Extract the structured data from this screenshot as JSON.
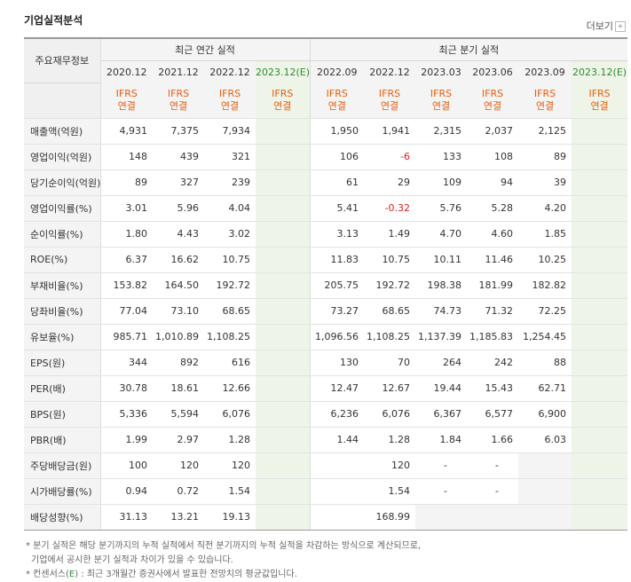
{
  "header": {
    "title": "기업실적분석",
    "more": "더보기",
    "more_icon": "plus-box-icon"
  },
  "table": {
    "label_header": "주요재무정보",
    "group_annual": "최근 연간 실적",
    "group_quarter": "최근 분기 실적",
    "annual_periods": [
      "2020.12",
      "2021.12",
      "2022.12",
      "2023.12(E)"
    ],
    "quarter_periods": [
      "2022.09",
      "2022.12",
      "2023.03",
      "2023.06",
      "2023.09",
      "2023.12(E)"
    ],
    "ifrs_line1": "IFRS",
    "ifrs_line2": "연결",
    "rows": [
      {
        "label": "매출액(억원)",
        "v": [
          "4,931",
          "7,375",
          "7,934",
          "",
          "1,950",
          "1,941",
          "2,315",
          "2,037",
          "2,125",
          ""
        ]
      },
      {
        "label": "영업이익(억원)",
        "v": [
          "148",
          "439",
          "321",
          "",
          "106",
          "-6",
          "133",
          "108",
          "89",
          ""
        ]
      },
      {
        "label": "당기순이익(억원)",
        "v": [
          "89",
          "327",
          "239",
          "",
          "61",
          "29",
          "109",
          "94",
          "39",
          ""
        ]
      },
      {
        "label": "영업이익률(%)",
        "v": [
          "3.01",
          "5.96",
          "4.04",
          "",
          "5.41",
          "-0.32",
          "5.76",
          "5.28",
          "4.20",
          ""
        ]
      },
      {
        "label": "순이익률(%)",
        "v": [
          "1.80",
          "4.43",
          "3.02",
          "",
          "3.13",
          "1.49",
          "4.70",
          "4.60",
          "1.85",
          ""
        ]
      },
      {
        "label": "ROE(%)",
        "v": [
          "6.37",
          "16.62",
          "10.75",
          "",
          "11.83",
          "10.75",
          "10.11",
          "11.46",
          "10.25",
          ""
        ]
      },
      {
        "label": "부채비율(%)",
        "v": [
          "153.82",
          "164.50",
          "192.72",
          "",
          "205.75",
          "192.72",
          "198.38",
          "181.99",
          "182.82",
          ""
        ]
      },
      {
        "label": "당좌비율(%)",
        "v": [
          "77.04",
          "73.10",
          "68.65",
          "",
          "73.27",
          "68.65",
          "74.73",
          "71.32",
          "72.25",
          ""
        ]
      },
      {
        "label": "유보율(%)",
        "v": [
          "985.71",
          "1,010.89",
          "1,108.25",
          "",
          "1,096.56",
          "1,108.25",
          "1,137.39",
          "1,185.83",
          "1,254.45",
          ""
        ]
      },
      {
        "label": "EPS(원)",
        "v": [
          "344",
          "892",
          "616",
          "",
          "130",
          "70",
          "264",
          "242",
          "88",
          ""
        ]
      },
      {
        "label": "PER(배)",
        "v": [
          "30.78",
          "18.61",
          "12.66",
          "",
          "12.47",
          "12.67",
          "19.44",
          "15.43",
          "62.71",
          ""
        ]
      },
      {
        "label": "BPS(원)",
        "v": [
          "5,336",
          "5,594",
          "6,076",
          "",
          "6,236",
          "6,076",
          "6,367",
          "6,577",
          "6,900",
          ""
        ]
      },
      {
        "label": "PBR(배)",
        "v": [
          "1.99",
          "2.97",
          "1.28",
          "",
          "1.44",
          "1.28",
          "1.84",
          "1.66",
          "6.03",
          ""
        ]
      },
      {
        "label": "주당배당금(원)",
        "v": [
          "100",
          "120",
          "120",
          "",
          "",
          "120",
          "-",
          "-",
          "",
          ""
        ]
      },
      {
        "label": "시가배당률(%)",
        "v": [
          "0.94",
          "0.72",
          "1.54",
          "",
          "",
          "1.54",
          "-",
          "-",
          "",
          ""
        ]
      },
      {
        "label": "배당성향(%)",
        "v": [
          "31.13",
          "13.21",
          "19.13",
          "",
          "",
          "168.99",
          "",
          "",
          "",
          ""
        ]
      }
    ]
  },
  "notes": {
    "line1": "* 분기 실적은 해당 분기까지의 누적 실적에서 직전 분기까지의 누적 실적을 차감하는 방식으로 계산되므로,",
    "line2": "기업에서 공시한 분기 실적과 차이가 있을 수 있습니다.",
    "line3_prefix": "* 컨센서스(",
    "line3_e": "E",
    "line3_suffix": ") : 최근 3개월간 증권사에서 발표한 전망치의 평균값입니다."
  }
}
